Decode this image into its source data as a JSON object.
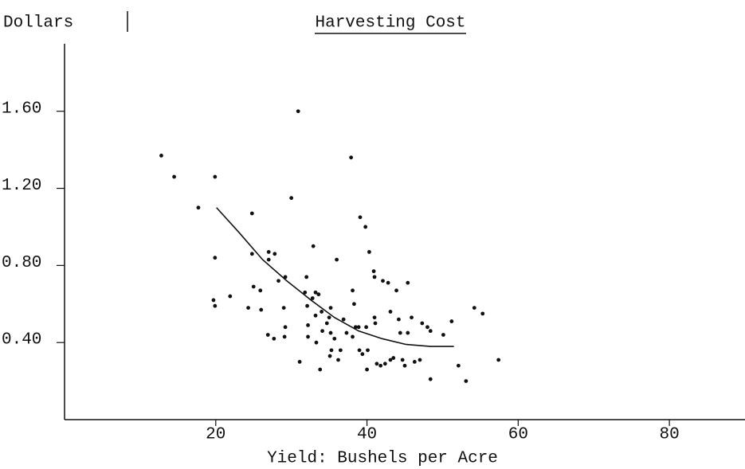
{
  "chart_data": {
    "type": "scatter",
    "title": "Harvesting Cost",
    "y_label": "Dollars",
    "x_label": "Yield:  Bushels per Acre",
    "xlim": [
      0,
      90
    ],
    "ylim": [
      0,
      1.95
    ],
    "xticks": [
      20,
      40,
      60,
      80
    ],
    "yticks": [
      {
        "value": 0.4,
        "label": "0.40"
      },
      {
        "value": 0.8,
        "label": "0.80"
      },
      {
        "value": 1.2,
        "label": "1.20"
      },
      {
        "value": 1.6,
        "label": "1.60"
      }
    ],
    "color": "#111111",
    "points": {
      "x": [
        12.8,
        14.5,
        17.7,
        19.9,
        19.9,
        19.7,
        19.9,
        21.9,
        24.8,
        24.8,
        24.3,
        25.0,
        25.9,
        26.0,
        26.9,
        27.0,
        27.0,
        27.8,
        27.7,
        28.3,
        29.0,
        29.2,
        29.1,
        30.0,
        30.9,
        31.1,
        29.2,
        31.8,
        32.1,
        32.0,
        32.2,
        32.2,
        32.8,
        33.2,
        33.2,
        32.9,
        33.3,
        33.6,
        33.8,
        34.0,
        34.1,
        34.7,
        35.0,
        35.2,
        35.2,
        35.3,
        35.1,
        35.7,
        36.0,
        36.5,
        36.2,
        36.9,
        37.3,
        37.9,
        38.1,
        38.1,
        38.3,
        38.5,
        38.9,
        39.1,
        39.0,
        39.4,
        39.8,
        39.9,
        40.0,
        40.3,
        40.1,
        40.9,
        41.0,
        41.0,
        41.1,
        41.3,
        41.8,
        42.1,
        42.4,
        42.8,
        43.1,
        43.1,
        43.5,
        43.9,
        44.2,
        44.4,
        44.7,
        45.0,
        45.4,
        45.4,
        45.9,
        46.3,
        47.0,
        47.3,
        48.0,
        48.4,
        48.4,
        50.1,
        51.2,
        52.1,
        53.1,
        54.2,
        55.3,
        57.4
      ],
      "y": [
        1.37,
        1.26,
        1.1,
        1.26,
        0.84,
        0.62,
        0.59,
        0.64,
        1.07,
        0.86,
        0.58,
        0.69,
        0.67,
        0.57,
        0.44,
        0.87,
        0.83,
        0.86,
        0.42,
        0.72,
        0.58,
        0.48,
        0.43,
        1.15,
        1.6,
        0.3,
        0.74,
        0.66,
        0.59,
        0.74,
        0.49,
        0.43,
        0.63,
        0.66,
        0.54,
        0.9,
        0.4,
        0.65,
        0.26,
        0.56,
        0.46,
        0.5,
        0.53,
        0.58,
        0.45,
        0.36,
        0.33,
        0.42,
        0.83,
        0.36,
        0.31,
        0.52,
        0.45,
        1.36,
        0.43,
        0.67,
        0.6,
        0.48,
        0.48,
        1.05,
        0.36,
        0.34,
        1.0,
        0.48,
        0.26,
        0.87,
        0.36,
        0.77,
        0.74,
        0.53,
        0.5,
        0.29,
        0.28,
        0.72,
        0.29,
        0.71,
        0.56,
        0.31,
        0.32,
        0.67,
        0.52,
        0.45,
        0.31,
        0.28,
        0.71,
        0.45,
        0.53,
        0.3,
        0.31,
        0.5,
        0.48,
        0.21,
        0.46,
        0.44,
        0.51,
        0.28,
        0.2,
        0.58,
        0.55,
        0.31
      ]
    },
    "curve": {
      "x": [
        20.1,
        23.1,
        26.2,
        29.4,
        32.6,
        35.7,
        38.9,
        42.0,
        45.2,
        48.4,
        51.5
      ],
      "y": [
        1.1,
        0.97,
        0.83,
        0.72,
        0.62,
        0.53,
        0.46,
        0.42,
        0.39,
        0.38,
        0.38
      ]
    }
  }
}
